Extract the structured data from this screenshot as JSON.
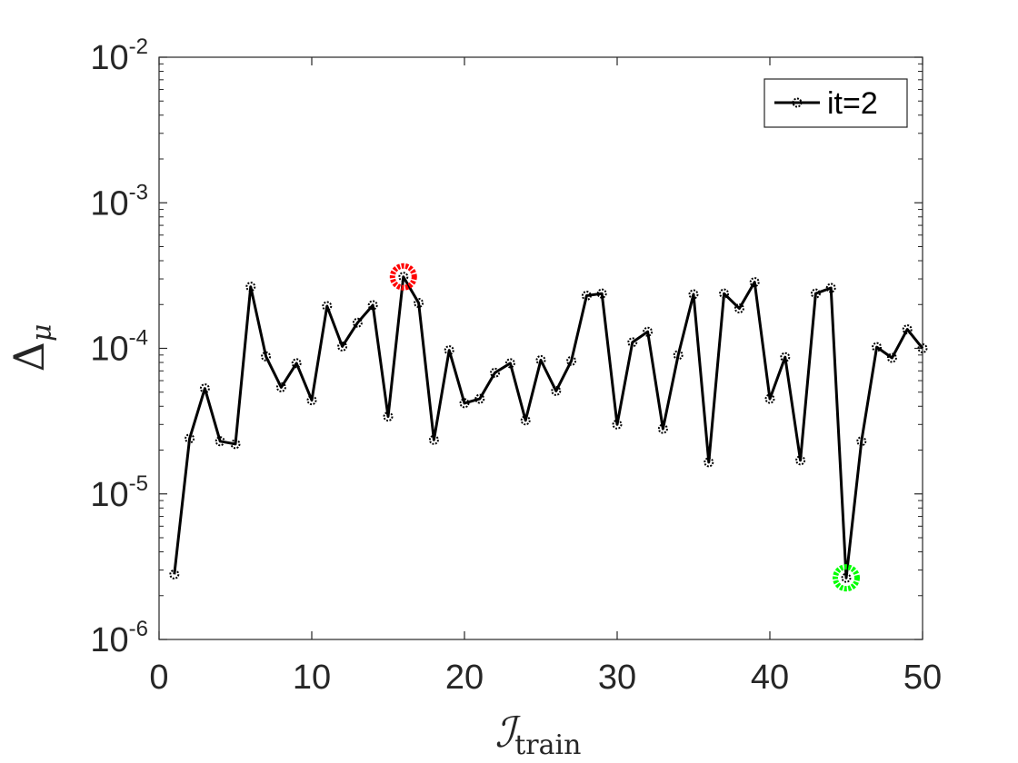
{
  "chart_data": {
    "type": "line",
    "yscale": "log",
    "xlim": [
      0,
      50
    ],
    "ylim": [
      1e-06,
      0.01
    ],
    "x_ticks": [
      {
        "value": 0,
        "label": "0"
      },
      {
        "value": 10,
        "label": "10"
      },
      {
        "value": 20,
        "label": "20"
      },
      {
        "value": 30,
        "label": "30"
      },
      {
        "value": 40,
        "label": "40"
      },
      {
        "value": 50,
        "label": "50"
      }
    ],
    "y_ticks": [
      {
        "value": 1e-06,
        "base": "10",
        "exp": "-6"
      },
      {
        "value": 1e-05,
        "base": "10",
        "exp": "-5"
      },
      {
        "value": 0.0001,
        "base": "10",
        "exp": "-4"
      },
      {
        "value": 0.001,
        "base": "10",
        "exp": "-3"
      },
      {
        "value": 0.01,
        "base": "10",
        "exp": "-2"
      }
    ],
    "xlabel": {
      "main": "ℐ",
      "sub": "train"
    },
    "ylabel": {
      "main": "Δ",
      "sub": "μ"
    },
    "grid": false,
    "legend": {
      "position": "top-right"
    },
    "series": [
      {
        "name": "it=2",
        "color": "#000000",
        "marker": "circle",
        "x": [
          1,
          2,
          3,
          4,
          5,
          6,
          7,
          8,
          9,
          10,
          11,
          12,
          13,
          14,
          15,
          16,
          17,
          18,
          19,
          20,
          21,
          22,
          23,
          24,
          25,
          26,
          27,
          28,
          29,
          30,
          31,
          32,
          33,
          34,
          35,
          36,
          37,
          38,
          39,
          40,
          41,
          42,
          43,
          44,
          45,
          46,
          47,
          48,
          49,
          50
        ],
        "y": [
          2.8e-06,
          2.4e-05,
          5.3e-05,
          2.3e-05,
          2.2e-05,
          0.000265,
          8.8e-05,
          5.4e-05,
          7.9e-05,
          4.4e-05,
          0.000195,
          0.000103,
          0.00015,
          0.000198,
          3.4e-05,
          0.00031,
          0.000205,
          2.35e-05,
          9.7e-05,
          4.2e-05,
          4.5e-05,
          6.8e-05,
          7.9e-05,
          3.2e-05,
          8.3e-05,
          5.1e-05,
          8.2e-05,
          0.00023,
          0.000238,
          3e-05,
          0.00011,
          0.00013,
          2.8e-05,
          9e-05,
          0.000235,
          1.65e-05,
          0.000238,
          0.000188,
          0.000285,
          4.5e-05,
          8.7e-05,
          1.7e-05,
          0.000238,
          0.00026,
          2.65e-06,
          2.3e-05,
          0.000102,
          8.6e-05,
          0.000135,
          0.0001
        ]
      }
    ],
    "highlights": [
      {
        "x": 16,
        "y": 0.00031,
        "color": "#ff0000"
      },
      {
        "x": 45,
        "y": 2.65e-06,
        "color": "#00ff00"
      }
    ]
  }
}
